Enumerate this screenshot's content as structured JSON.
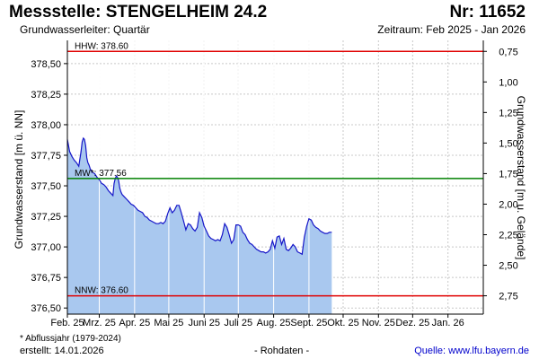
{
  "header": {
    "title": "Messstelle: STENGELHEIM 24.2",
    "number": "Nr: 11652",
    "subtitle": "Grundwasserleiter: Quartär",
    "period": "Zeitraum: Feb 2025 - Jan 2026"
  },
  "footer": {
    "footnote": "* Abflussjahr (1979-2024)",
    "created": "erstellt:  14.01.2026",
    "raw": "- Rohdaten -",
    "source": "Quelle: www.lfu.bayern.de"
  },
  "colors": {
    "fill": "#a9c8ef",
    "line": "#1515c8",
    "hhw": "#e00000",
    "nnw": "#e00000",
    "mw": "#008000",
    "grid": "#c8c8c8"
  },
  "chart_data": {
    "type": "area",
    "ylabel": "Grundwasserstand [m ü. NN]",
    "y2label": "Grundwasserstand [m u. Gelände]",
    "ylim": [
      376.45,
      378.69
    ],
    "yticks": [
      "376,50",
      "376,75",
      "377,00",
      "377,25",
      "377,50",
      "377,75",
      "378,00",
      "378,25",
      "378,50"
    ],
    "yticks_values": [
      376.5,
      376.75,
      377.0,
      377.25,
      377.5,
      377.75,
      378.0,
      378.25,
      378.5
    ],
    "y2ticks": [
      "0,75",
      "1,00",
      "1,25",
      "1,50",
      "1,75",
      "2,00",
      "2,25",
      "2,50",
      "2,75"
    ],
    "y2ticks_values": [
      0.75,
      1.0,
      1.25,
      1.5,
      1.75,
      2.0,
      2.25,
      2.5,
      2.75
    ],
    "y2_reference": 379.35,
    "xlim": [
      0,
      365
    ],
    "xticks": [
      "Feb. 25",
      "Mrz. 25",
      "Apr. 25",
      "Mai 25",
      "Juni 25",
      "Juli 25",
      "Aug. 25",
      "Sept. 25",
      "Okt. 25",
      "Nov. 25",
      "Dez. 25",
      "Jan. 26"
    ],
    "xticks_values": [
      0,
      28,
      59,
      89,
      120,
      150,
      181,
      212,
      242,
      273,
      303,
      334
    ],
    "reference_lines": [
      {
        "key": "hhw",
        "label": "HHW: 378.60",
        "value": 378.6
      },
      {
        "key": "mw",
        "label": "MW*: 377.56",
        "value": 377.56
      },
      {
        "key": "nnw",
        "label": "NNW: 376.60",
        "value": 376.6
      }
    ],
    "series": [
      {
        "x": [
          0,
          2,
          4,
          6,
          8,
          10,
          12,
          13,
          14,
          15,
          16,
          17,
          18,
          19,
          20,
          22,
          24,
          26,
          28,
          30,
          32,
          34,
          36,
          38,
          40,
          41,
          42,
          43,
          44,
          45,
          46,
          47,
          48,
          50,
          52,
          54,
          56,
          58,
          60,
          62,
          64,
          66,
          68,
          70,
          72,
          74,
          76,
          78,
          80,
          82,
          84,
          86,
          88,
          90,
          92,
          94,
          96,
          98,
          100,
          102,
          104,
          106,
          108,
          110,
          112,
          114,
          116,
          118,
          120,
          122,
          124,
          126,
          128,
          130,
          132,
          134,
          136,
          138,
          140,
          142,
          144,
          146,
          148,
          150,
          152,
          154,
          156,
          158,
          160,
          162,
          164,
          166,
          168,
          170,
          172,
          174,
          176,
          178,
          180,
          182,
          184,
          186,
          188,
          190,
          192,
          194,
          196,
          198,
          200,
          202,
          204,
          206,
          208,
          210,
          212,
          214,
          216,
          218,
          220,
          222,
          224,
          226,
          228,
          230,
          232
        ],
        "y": [
          377.88,
          377.78,
          377.74,
          377.71,
          377.69,
          377.66,
          377.78,
          377.86,
          377.89,
          377.88,
          377.83,
          377.73,
          377.69,
          377.67,
          377.64,
          377.61,
          377.6,
          377.57,
          377.55,
          377.52,
          377.51,
          377.49,
          377.46,
          377.44,
          377.42,
          377.52,
          377.56,
          377.58,
          377.57,
          377.54,
          377.48,
          377.45,
          377.43,
          377.41,
          377.39,
          377.37,
          377.35,
          377.34,
          377.32,
          377.3,
          377.29,
          377.28,
          377.25,
          377.24,
          377.22,
          377.21,
          377.2,
          377.19,
          377.19,
          377.2,
          377.19,
          377.21,
          377.27,
          377.32,
          377.28,
          377.3,
          377.34,
          377.34,
          377.28,
          377.21,
          377.14,
          377.19,
          377.18,
          377.15,
          377.13,
          377.16,
          377.28,
          377.24,
          377.17,
          377.13,
          377.09,
          377.07,
          377.06,
          377.05,
          377.06,
          377.05,
          377.1,
          377.19,
          377.16,
          377.1,
          377.03,
          377.06,
          377.18,
          377.18,
          377.17,
          377.12,
          377.1,
          377.06,
          377.03,
          377.02,
          377.0,
          376.98,
          376.97,
          376.96,
          376.96,
          376.95,
          376.96,
          376.98,
          377.05,
          376.99,
          377.08,
          377.09,
          377.02,
          377.07,
          376.98,
          376.97,
          376.99,
          377.02,
          377.0,
          376.96,
          376.95,
          376.94,
          377.08,
          377.17,
          377.23,
          377.22,
          377.18,
          377.16,
          377.15,
          377.13,
          377.12,
          377.11,
          377.11,
          377.12,
          377.12
        ]
      }
    ],
    "grid": true
  }
}
